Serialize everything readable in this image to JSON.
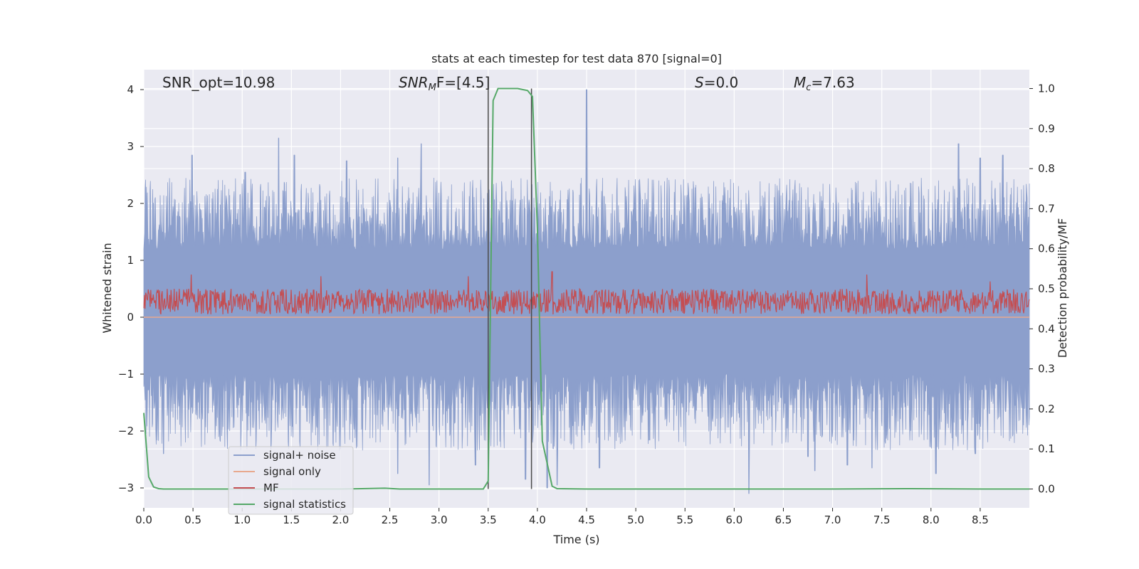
{
  "chart_data": {
    "type": "line",
    "title": "stats at each timestep for test data 870 [signal=0]",
    "xlabel": "Time (s)",
    "ylabel": "Whitened strain",
    "y2label": "Detection probability/MF",
    "xlim": [
      0.0,
      9.0
    ],
    "ylim": [
      -3.35,
      4.35
    ],
    "y2lim": [
      -0.047,
      1.047
    ],
    "xticks": [
      0.0,
      0.5,
      1.0,
      1.5,
      2.0,
      2.5,
      3.0,
      3.5,
      4.0,
      4.5,
      5.0,
      5.5,
      6.0,
      6.5,
      7.0,
      7.5,
      8.0,
      8.5
    ],
    "xtick_labels": [
      "0.0",
      "0.5",
      "1.0",
      "1.5",
      "2.0",
      "2.5",
      "3.0",
      "3.5",
      "4.0",
      "4.5",
      "5.0",
      "5.5",
      "6.0",
      "6.5",
      "7.0",
      "7.5",
      "8.0",
      "8.5"
    ],
    "yticks": [
      -3,
      -2,
      -1,
      0,
      1,
      2,
      3,
      4
    ],
    "ytick_labels": [
      "−3",
      "−2",
      "−1",
      "0",
      "1",
      "2",
      "3",
      "4"
    ],
    "y2ticks": [
      0.0,
      0.1,
      0.2,
      0.3,
      0.4,
      0.5,
      0.6,
      0.7,
      0.8,
      0.9,
      1.0
    ],
    "y2tick_labels": [
      "0.0",
      "0.1",
      "0.2",
      "0.3",
      "0.4",
      "0.5",
      "0.6",
      "0.7",
      "0.8",
      "0.9",
      "1.0"
    ],
    "grid": true,
    "legend_position": "lower-left",
    "annotations": {
      "snr_opt": "SNR_opt=10.98",
      "snr_mf_base": "SNR",
      "snr_mf_sub": "M",
      "snr_mf_rest": "F=[4.5]",
      "s_italic": "S",
      "s_rest": "=0.0",
      "mc_base": "M",
      "mc_sub": "c",
      "mc_rest": "=7.63"
    },
    "vlines_x": [
      3.5,
      3.94
    ],
    "series": [
      {
        "name": "signal+ noise",
        "color": "#8c9fcc",
        "description_values": "noise-like strain, typical range -1.9 to 2.1, peaks up to 4.0 near t=4.5 and down to -3.1 near t=6.15",
        "peaks": [
          [
            0.49,
            2.85
          ],
          [
            1.03,
            2.55
          ],
          [
            1.37,
            3.15
          ],
          [
            1.53,
            2.85
          ],
          [
            2.06,
            2.75
          ],
          [
            2.58,
            2.8
          ],
          [
            2.82,
            3.05
          ],
          [
            4.5,
            4.0
          ],
          [
            8.5,
            2.8
          ],
          [
            8.28,
            3.05
          ],
          [
            8.73,
            2.85
          ],
          [
            8.95,
            1.6
          ]
        ],
        "troughs": [
          [
            0.2,
            -2.4
          ],
          [
            2.58,
            -2.75
          ],
          [
            2.9,
            -2.95
          ],
          [
            3.37,
            -2.6
          ],
          [
            3.88,
            -2.85
          ],
          [
            4.1,
            -3.0
          ],
          [
            4.2,
            -2.95
          ],
          [
            4.63,
            -2.65
          ],
          [
            6.15,
            -3.1
          ],
          [
            6.75,
            -2.45
          ],
          [
            6.82,
            -2.7
          ],
          [
            7.15,
            -2.6
          ],
          [
            7.4,
            -2.65
          ],
          [
            8.05,
            -2.75
          ],
          [
            8.45,
            -2.4
          ]
        ]
      },
      {
        "name": "signal only",
        "color": "#e8a98e",
        "values_note": "flat at 0"
      },
      {
        "name": "MF",
        "color": "#c44e52",
        "typical_range": [
          0.05,
          0.5
        ],
        "peaks": [
          [
            0.48,
            0.75
          ],
          [
            1.8,
            0.72
          ],
          [
            3.3,
            0.72
          ],
          [
            4.15,
            0.8
          ],
          [
            7.35,
            0.75
          ],
          [
            8.6,
            0.63
          ]
        ]
      },
      {
        "name": "signal statistics",
        "color": "#55a868",
        "axis": "right",
        "x": [
          0.0,
          0.05,
          0.1,
          0.15,
          0.2,
          0.5,
          1.0,
          1.5,
          2.0,
          2.45,
          2.6,
          3.0,
          3.45,
          3.5,
          3.55,
          3.6,
          3.7,
          3.8,
          3.9,
          3.95,
          4.0,
          4.05,
          4.15,
          4.2,
          4.5,
          5.0,
          6.0,
          7.0,
          7.8,
          8.5,
          9.0
        ],
        "y": [
          0.19,
          0.03,
          0.005,
          0.001,
          0.0,
          0.0,
          0.0,
          0.0,
          0.0,
          0.002,
          0.0,
          0.0,
          0.0,
          0.02,
          0.97,
          1.0,
          1.0,
          1.0,
          0.995,
          0.98,
          0.65,
          0.12,
          0.007,
          0.001,
          0.0,
          0.0,
          0.0,
          0.0,
          0.001,
          0.0,
          0.0
        ]
      }
    ]
  }
}
